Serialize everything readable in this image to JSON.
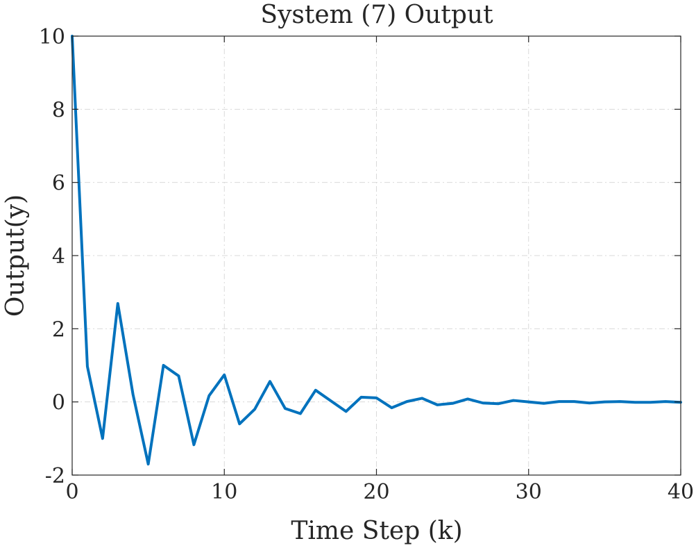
{
  "chart_data": {
    "type": "line",
    "title": "System (7) Output",
    "xlabel": "Time Step (k)",
    "ylabel": "Output(y)",
    "ylabel_var": "y",
    "xlim": [
      0,
      40
    ],
    "ylim": [
      -2,
      10
    ],
    "xticks": [
      0,
      10,
      20,
      30,
      40
    ],
    "yticks": [
      -2,
      0,
      2,
      4,
      6,
      8,
      10
    ],
    "grid": true,
    "series": [
      {
        "name": "y",
        "color": "#0072BD",
        "x": [
          0,
          1,
          2,
          3,
          4,
          5,
          6,
          7,
          8,
          9,
          10,
          11,
          12,
          13,
          14,
          15,
          16,
          17,
          18,
          19,
          20,
          21,
          22,
          23,
          24,
          25,
          26,
          27,
          28,
          29,
          30,
          31,
          32,
          33,
          34,
          35,
          36,
          37,
          38,
          39,
          40
        ],
        "values": [
          10,
          0.97,
          -1.0,
          2.69,
          0.2,
          -1.7,
          1.0,
          0.71,
          -1.17,
          0.17,
          0.74,
          -0.6,
          -0.2,
          0.56,
          -0.18,
          -0.32,
          0.32,
          0.03,
          -0.26,
          0.13,
          0.11,
          -0.16,
          0.01,
          0.1,
          -0.08,
          -0.04,
          0.08,
          -0.03,
          -0.05,
          0.04,
          0.0,
          -0.04,
          0.01,
          0.01,
          -0.03,
          0.0,
          0.01,
          -0.01,
          -0.01,
          0.01,
          -0.01
        ]
      }
    ]
  }
}
